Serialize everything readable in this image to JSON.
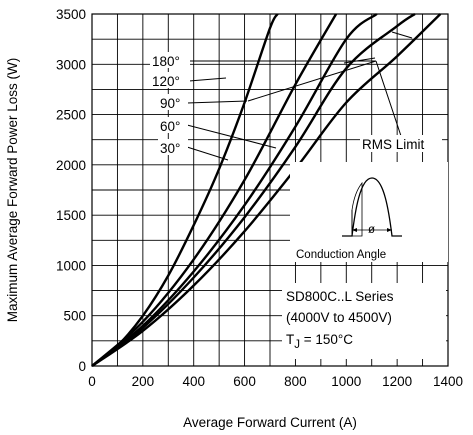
{
  "chart_data": {
    "type": "line",
    "title": "",
    "xlabel": "Average Forward Current (A)",
    "ylabel": "Maximum Average Forward Power Loss (W)",
    "xlim": [
      0,
      1400
    ],
    "ylim": [
      0,
      3500
    ],
    "x_ticks": [
      "0",
      "200",
      "400",
      "600",
      "800",
      "1000",
      "1200",
      "1400"
    ],
    "y_ticks": [
      "0",
      "500",
      "1000",
      "1500",
      "2000",
      "2500",
      "3000",
      "3500"
    ],
    "grid": true,
    "series": [
      {
        "name": "30°",
        "x": [
          0,
          100,
          200,
          300,
          400,
          500,
          600,
          700,
          730
        ],
        "y": [
          0,
          200,
          500,
          900,
          1400,
          1960,
          2620,
          3360,
          3500
        ]
      },
      {
        "name": "60°",
        "x": [
          0,
          200,
          400,
          600,
          800,
          960
        ],
        "y": [
          0,
          440,
          1060,
          1850,
          2800,
          3500
        ]
      },
      {
        "name": "90°",
        "x": [
          0,
          200,
          400,
          600,
          800,
          1000,
          1120
        ],
        "y": [
          0,
          400,
          940,
          1600,
          2380,
          3250,
          3500
        ]
      },
      {
        "name": "120°",
        "x": [
          0,
          200,
          400,
          600,
          800,
          1000,
          1200,
          1270
        ],
        "y": [
          0,
          380,
          880,
          1480,
          2180,
          2960,
          3380,
          3500
        ]
      },
      {
        "name": "180°",
        "x": [
          0,
          200,
          400,
          600,
          800,
          1000,
          1200,
          1370
        ],
        "y": [
          0,
          350,
          800,
          1340,
          1960,
          2620,
          3080,
          3500
        ]
      }
    ],
    "annotations": {
      "rms_limit": "RMS Limit",
      "conduction_angle": "Conduction Angle",
      "phi": "ø",
      "series_name": "SD800C..L Series",
      "voltage_range": "(4000V to 4500V)",
      "tj_prefix": "T",
      "tj_sub": "J",
      "tj_value": " = 150°C"
    }
  }
}
